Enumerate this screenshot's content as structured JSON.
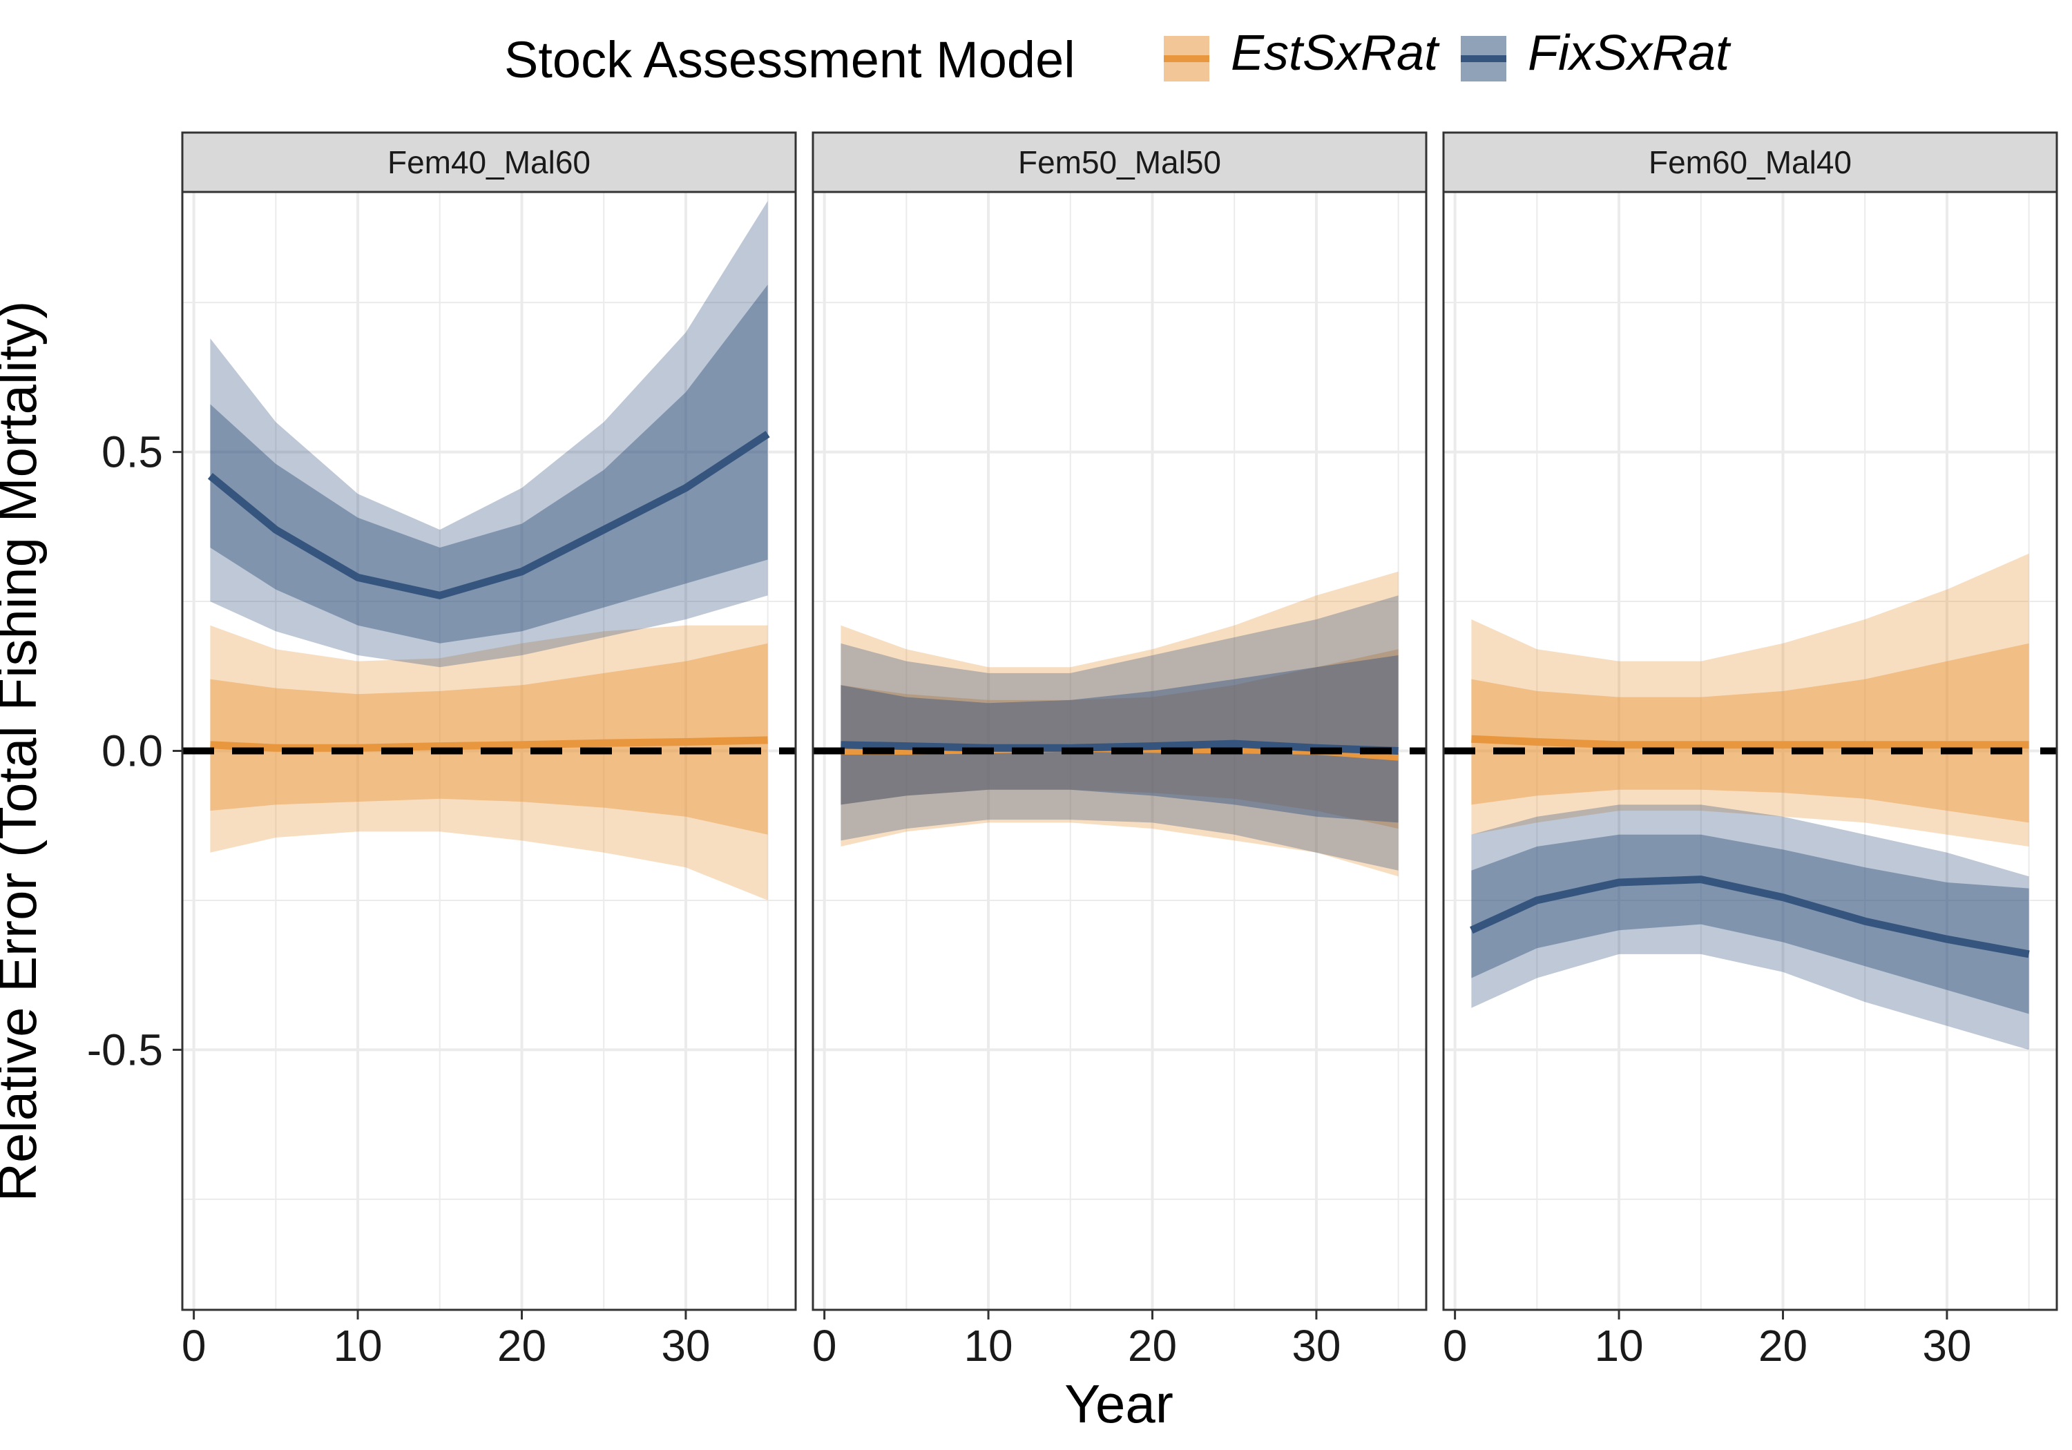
{
  "chart_data": {
    "type": "line",
    "title": "",
    "xlabel": "Year",
    "ylabel": "Relative Error (Total Fishing Mortality)",
    "xlim": [
      -0.7,
      36.7
    ],
    "ylim": [
      -0.935,
      0.935
    ],
    "x_ticks": [
      0,
      10,
      20,
      30
    ],
    "x_tick_labels": [
      "0",
      "10",
      "20",
      "30"
    ],
    "y_ticks": [
      -0.5,
      0,
      0.5
    ],
    "y_tick_labels": [
      "-0.5",
      "0.0",
      "0.5"
    ],
    "reference_line": 0,
    "grid": true,
    "legend": {
      "title": "Stock Assessment Model",
      "position": "top",
      "entries": [
        "EstSxRat",
        "FixSxRat"
      ]
    },
    "colors": {
      "EstSxRat": "#E8973F",
      "FixSxRat": "#35557E",
      "reference": "#000000",
      "strip_fill": "#D9D9D9",
      "grid": "#EBEBEB"
    },
    "x": [
      1,
      5,
      10,
      15,
      20,
      25,
      30,
      35
    ],
    "panels": [
      {
        "label": "Fem40_Mal60",
        "series": [
          {
            "name": "EstSxRat",
            "median": [
              0.01,
              0.005,
              0.005,
              0.008,
              0.01,
              0.013,
              0.015,
              0.018
            ],
            "inner": [
              [
                -0.1,
                0.12
              ],
              [
                -0.09,
                0.105
              ],
              [
                -0.085,
                0.095
              ],
              [
                -0.08,
                0.1
              ],
              [
                -0.085,
                0.11
              ],
              [
                -0.095,
                0.13
              ],
              [
                -0.11,
                0.15
              ],
              [
                -0.14,
                0.18
              ]
            ],
            "outer": [
              [
                -0.17,
                0.21
              ],
              [
                -0.145,
                0.17
              ],
              [
                -0.135,
                0.15
              ],
              [
                -0.135,
                0.155
              ],
              [
                -0.15,
                0.18
              ],
              [
                -0.17,
                0.2
              ],
              [
                -0.195,
                0.21
              ],
              [
                -0.25,
                0.21
              ]
            ]
          },
          {
            "name": "FixSxRat",
            "median": [
              0.46,
              0.37,
              0.29,
              0.26,
              0.3,
              0.37,
              0.44,
              0.53
            ],
            "inner": [
              [
                0.34,
                0.58
              ],
              [
                0.27,
                0.48
              ],
              [
                0.21,
                0.39
              ],
              [
                0.18,
                0.34
              ],
              [
                0.2,
                0.38
              ],
              [
                0.24,
                0.47
              ],
              [
                0.28,
                0.6
              ],
              [
                0.32,
                0.78
              ]
            ],
            "outer": [
              [
                0.25,
                0.69
              ],
              [
                0.2,
                0.55
              ],
              [
                0.16,
                0.43
              ],
              [
                0.14,
                0.37
              ],
              [
                0.16,
                0.44
              ],
              [
                0.19,
                0.55
              ],
              [
                0.22,
                0.7
              ],
              [
                0.26,
                0.92
              ]
            ]
          }
        ]
      },
      {
        "label": "Fem50_Mal50",
        "series": [
          {
            "name": "EstSxRat",
            "median": [
              0.0,
              0.0,
              0.002,
              0.005,
              0.003,
              0.002,
              0.0,
              -0.01
            ],
            "inner": [
              [
                -0.09,
                0.11
              ],
              [
                -0.075,
                0.095
              ],
              [
                -0.065,
                0.085
              ],
              [
                -0.065,
                0.085
              ],
              [
                -0.07,
                0.09
              ],
              [
                -0.08,
                0.11
              ],
              [
                -0.1,
                0.14
              ],
              [
                -0.13,
                0.17
              ]
            ],
            "outer": [
              [
                -0.16,
                0.21
              ],
              [
                -0.135,
                0.17
              ],
              [
                -0.12,
                0.14
              ],
              [
                -0.12,
                0.14
              ],
              [
                -0.13,
                0.17
              ],
              [
                -0.15,
                0.21
              ],
              [
                -0.17,
                0.26
              ],
              [
                -0.21,
                0.3
              ]
            ]
          },
          {
            "name": "FixSxRat",
            "median": [
              0.01,
              0.008,
              0.005,
              0.005,
              0.008,
              0.012,
              0.005,
              0.0
            ],
            "inner": [
              [
                -0.09,
                0.11
              ],
              [
                -0.075,
                0.09
              ],
              [
                -0.065,
                0.08
              ],
              [
                -0.065,
                0.085
              ],
              [
                -0.075,
                0.1
              ],
              [
                -0.09,
                0.12
              ],
              [
                -0.11,
                0.14
              ],
              [
                -0.12,
                0.16
              ]
            ],
            "outer": [
              [
                -0.15,
                0.18
              ],
              [
                -0.13,
                0.15
              ],
              [
                -0.115,
                0.13
              ],
              [
                -0.115,
                0.13
              ],
              [
                -0.12,
                0.16
              ],
              [
                -0.14,
                0.19
              ],
              [
                -0.17,
                0.22
              ],
              [
                -0.2,
                0.26
              ]
            ]
          }
        ]
      },
      {
        "label": "Fem60_Mal40",
        "series": [
          {
            "name": "EstSxRat",
            "median": [
              0.02,
              0.015,
              0.01,
              0.01,
              0.01,
              0.01,
              0.01,
              0.01
            ],
            "inner": [
              [
                -0.09,
                0.12
              ],
              [
                -0.075,
                0.1
              ],
              [
                -0.065,
                0.09
              ],
              [
                -0.065,
                0.09
              ],
              [
                -0.07,
                0.1
              ],
              [
                -0.08,
                0.12
              ],
              [
                -0.1,
                0.15
              ],
              [
                -0.12,
                0.18
              ]
            ],
            "outer": [
              [
                -0.14,
                0.22
              ],
              [
                -0.12,
                0.17
              ],
              [
                -0.1,
                0.15
              ],
              [
                -0.1,
                0.15
              ],
              [
                -0.11,
                0.18
              ],
              [
                -0.12,
                0.22
              ],
              [
                -0.14,
                0.27
              ],
              [
                -0.16,
                0.33
              ]
            ]
          },
          {
            "name": "FixSxRat",
            "median": [
              -0.3,
              -0.25,
              -0.22,
              -0.215,
              -0.245,
              -0.285,
              -0.315,
              -0.34
            ],
            "inner": [
              [
                -0.38,
                -0.2
              ],
              [
                -0.33,
                -0.16
              ],
              [
                -0.3,
                -0.14
              ],
              [
                -0.29,
                -0.14
              ],
              [
                -0.32,
                -0.165
              ],
              [
                -0.36,
                -0.195
              ],
              [
                -0.4,
                -0.22
              ],
              [
                -0.44,
                -0.23
              ]
            ],
            "outer": [
              [
                -0.43,
                -0.14
              ],
              [
                -0.38,
                -0.11
              ],
              [
                -0.34,
                -0.09
              ],
              [
                -0.34,
                -0.09
              ],
              [
                -0.37,
                -0.11
              ],
              [
                -0.42,
                -0.14
              ],
              [
                -0.46,
                -0.17
              ],
              [
                -0.5,
                -0.21
              ]
            ]
          }
        ]
      }
    ]
  }
}
